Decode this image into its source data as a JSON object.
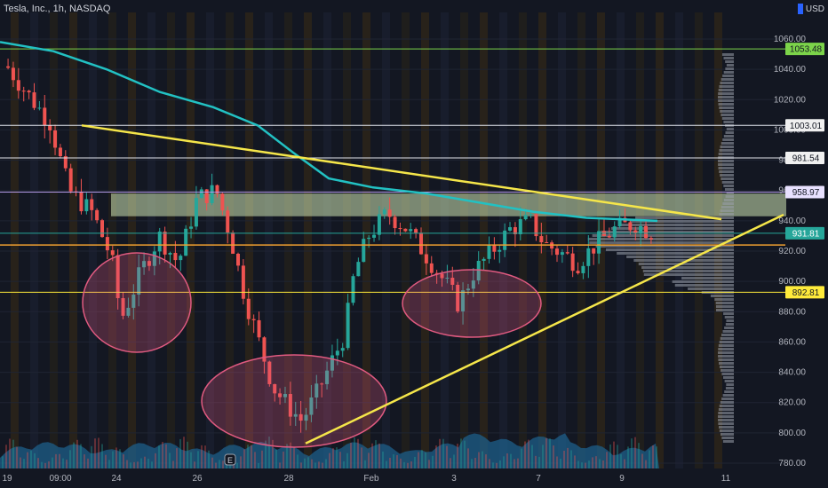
{
  "header": {
    "symbol": "Tesla, Inc., 1h, NASDAQ",
    "currency": "USD"
  },
  "colors": {
    "background": "#131722",
    "up": "#26a69a",
    "down": "#ef5350",
    "ma": "#22c1c3",
    "trendline": "#f5e64a",
    "level_orange": "#f0a030",
    "level_green": "#7cd44a",
    "level_yellow": "#ffeb3b",
    "level_white": "#e0e3eb",
    "level_purple": "#b59be8",
    "zone_fill": "#cfe6b4",
    "ellipse": "#e05a80"
  },
  "chart_data": {
    "type": "candlestick",
    "title": "Tesla, Inc., 1h, NASDAQ",
    "x_ticks": [
      "19",
      "09:00",
      "24",
      "26",
      "28",
      "Feb",
      "3",
      "7",
      "9",
      "11"
    ],
    "y_ticks": [
      1060,
      1040,
      1020,
      1000,
      980,
      960,
      940,
      920,
      900,
      880,
      860,
      840,
      820,
      800,
      780
    ],
    "y_range": [
      775,
      1065
    ],
    "levels": [
      {
        "price": 1053.48,
        "label": "1053.48",
        "color": "#7cd44a"
      },
      {
        "price": 1003.01,
        "label": "1003.01",
        "color": "#e0e3eb"
      },
      {
        "price": 981.54,
        "label": "981.54",
        "color": "#e0e3eb"
      },
      {
        "price": 958.97,
        "label": "958.97",
        "color": "#b59be8"
      },
      {
        "price": 931.81,
        "label": "931.81",
        "color": "#26a69a"
      },
      {
        "price": 892.81,
        "label": "892.81",
        "color": "#ffeb3b"
      }
    ],
    "orange_level": 924,
    "zone": [
      943,
      958
    ],
    "annotations": {
      "trendline_down": [
        [
          1,
          1003
        ],
        [
          14,
          941
        ]
      ],
      "trendline_up": [
        [
          6,
          792
        ],
        [
          15.5,
          944
        ]
      ],
      "ellipses": [
        {
          "center": [
            1.45,
            898
          ],
          "label": ""
        },
        {
          "center": [
            5.15,
            818
          ],
          "label": ""
        },
        {
          "center": [
            9.3,
            890
          ],
          "label": ""
        }
      ]
    },
    "candles_ohlc_keypoints": [
      [
        0.0,
        1042
      ],
      [
        0.4,
        1025
      ],
      [
        0.9,
        1005
      ],
      [
        1.3,
        960
      ],
      [
        1.8,
        945
      ],
      [
        2.2,
        915
      ],
      [
        2.4,
        875
      ],
      [
        2.8,
        905
      ],
      [
        3.2,
        930
      ],
      [
        3.6,
        912
      ],
      [
        4.0,
        955
      ],
      [
        4.4,
        960
      ],
      [
        4.7,
        930
      ],
      [
        5.0,
        890
      ],
      [
        5.3,
        860
      ],
      [
        5.6,
        830
      ],
      [
        5.9,
        818
      ],
      [
        6.2,
        808
      ],
      [
        6.5,
        825
      ],
      [
        6.8,
        845
      ],
      [
        7.1,
        865
      ],
      [
        7.3,
        905
      ],
      [
        7.6,
        930
      ],
      [
        8.0,
        945
      ],
      [
        8.4,
        935
      ],
      [
        8.8,
        918
      ],
      [
        9.2,
        900
      ],
      [
        9.5,
        885
      ],
      [
        9.8,
        905
      ],
      [
        10.2,
        920
      ],
      [
        10.6,
        935
      ],
      [
        11.0,
        940
      ],
      [
        11.3,
        925
      ],
      [
        11.7,
        918
      ],
      [
        12.0,
        912
      ],
      [
        12.4,
        925
      ],
      [
        12.8,
        935
      ],
      [
        13.2,
        938
      ],
      [
        13.6,
        932
      ]
    ]
  }
}
